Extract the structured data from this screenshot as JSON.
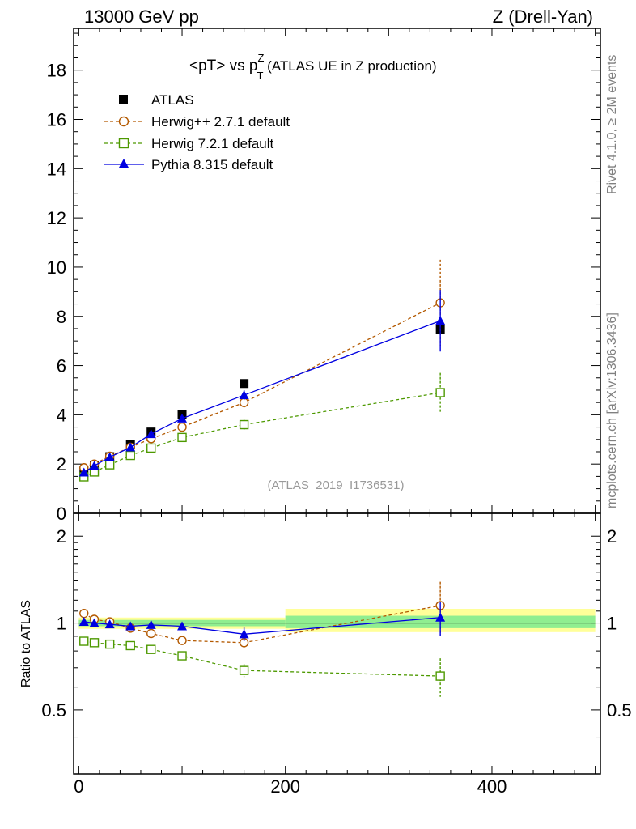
{
  "header": {
    "left": "13000 GeV pp",
    "right": "Z (Drell-Yan)"
  },
  "side_labels": {
    "rivet": "Rivet 4.1.0, ≥ 2M events",
    "mcplots": "mcplots.cern.ch [arXiv:1306.3436]"
  },
  "chart_data": {
    "type": "line",
    "title": "<pT> vs p",
    "title_sup": "Z",
    "title_sub": "T",
    "title_suffix": " (ATLAS UE in Z production)",
    "watermark": "(ATLAS_2019_I1736531)",
    "xlim": [
      -5,
      505
    ],
    "x_ticks": [
      "0",
      "200",
      "400"
    ],
    "x_tick_values": [
      0,
      200,
      400
    ],
    "main": {
      "ylim": [
        0,
        19.7
      ],
      "y_ticks": [
        "0",
        "2",
        "4",
        "6",
        "8",
        "10",
        "12",
        "14",
        "16",
        "18"
      ],
      "y_tick_values": [
        0,
        2,
        4,
        6,
        8,
        10,
        12,
        14,
        16,
        18
      ]
    },
    "ratio": {
      "ylabel": "Ratio to ATLAS",
      "y_ticks": [
        "0.5",
        "1",
        "2"
      ],
      "y_tick_values": [
        0.5,
        1,
        2
      ],
      "ylim": [
        0.3,
        2.4
      ],
      "bands": [
        {
          "x": [
            0,
            200
          ],
          "green": [
            0.975,
            1.025
          ],
          "yellow": [
            0.955,
            1.045
          ]
        },
        {
          "x": [
            200,
            500
          ],
          "green": [
            0.96,
            1.06
          ],
          "yellow": [
            0.93,
            1.12
          ]
        }
      ]
    },
    "x": [
      5,
      15,
      30,
      50,
      70,
      100,
      160,
      350
    ],
    "reference": {
      "name": "ATLAS",
      "color": "#000000",
      "values": [
        1.72,
        1.95,
        2.3,
        2.8,
        3.3,
        4.02,
        5.27,
        7.48
      ]
    },
    "series": [
      {
        "name": "Herwig++ 2.7.1 default",
        "color": "#b35900",
        "marker": "circle-open",
        "dashed": true,
        "values": [
          1.85,
          2.0,
          2.32,
          2.68,
          3.03,
          3.5,
          4.5,
          8.55
        ],
        "errors": [
          0.03,
          0.03,
          0.03,
          0.03,
          0.04,
          0.05,
          0.2,
          1.75
        ],
        "ratio": [
          1.08,
          1.03,
          1.01,
          0.96,
          0.92,
          0.87,
          0.855,
          1.15
        ],
        "ratio_errors": [
          0.01,
          0.01,
          0.01,
          0.01,
          0.01,
          0.015,
          0.04,
          0.24
        ]
      },
      {
        "name": "Herwig 7.2.1 default",
        "color": "#4d9900",
        "marker": "square-open",
        "dashed": true,
        "values": [
          1.48,
          1.68,
          1.97,
          2.35,
          2.65,
          3.08,
          3.6,
          4.9
        ],
        "errors": [
          0.03,
          0.03,
          0.03,
          0.03,
          0.04,
          0.05,
          0.2,
          0.8
        ],
        "ratio": [
          0.865,
          0.855,
          0.845,
          0.835,
          0.81,
          0.77,
          0.685,
          0.655
        ],
        "ratio_errors": [
          0.01,
          0.01,
          0.01,
          0.01,
          0.01,
          0.015,
          0.035,
          0.1
        ]
      },
      {
        "name": "Pythia 8.315 default",
        "color": "#0000e0",
        "marker": "triangle-filled",
        "dashed": false,
        "values": [
          1.66,
          1.93,
          2.28,
          2.68,
          3.22,
          3.85,
          4.8,
          7.82
        ],
        "errors": [
          0.03,
          0.03,
          0.03,
          0.03,
          0.04,
          0.05,
          0.2,
          1.25
        ],
        "ratio": [
          1.01,
          1.0,
          0.99,
          0.975,
          0.985,
          0.975,
          0.915,
          1.045
        ],
        "ratio_errors": [
          0.01,
          0.01,
          0.01,
          0.01,
          0.01,
          0.015,
          0.05,
          0.14
        ]
      }
    ]
  }
}
